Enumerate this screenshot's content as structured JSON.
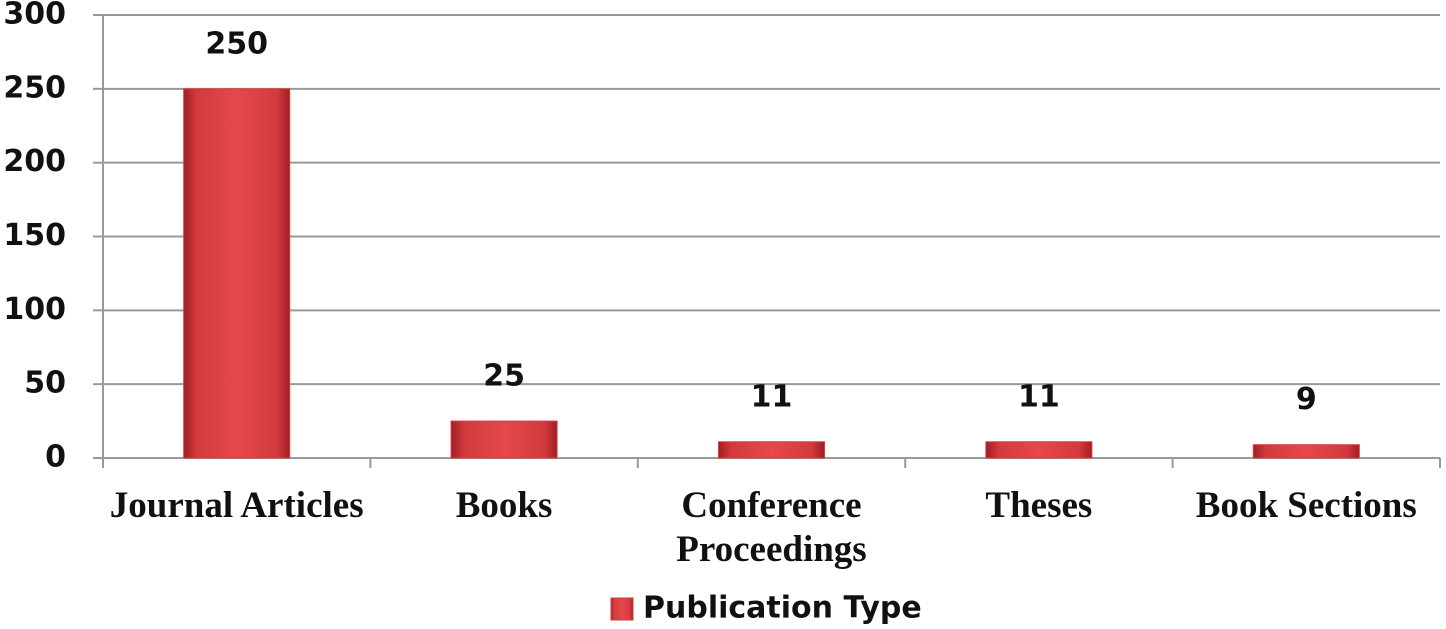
{
  "chart_data": {
    "type": "bar",
    "categories": [
      "Journal Articles",
      "Books",
      "Conference Proceedings",
      "Theses",
      "Book Sections"
    ],
    "series": [
      {
        "name": "Publication Type",
        "color": "#d93a3e",
        "values": [
          250,
          25,
          11,
          11,
          9
        ]
      }
    ],
    "ylim": [
      0,
      300
    ],
    "yticks": [
      0,
      50,
      100,
      150,
      200,
      250,
      300
    ],
    "grid": true,
    "legend": "bottom"
  }
}
